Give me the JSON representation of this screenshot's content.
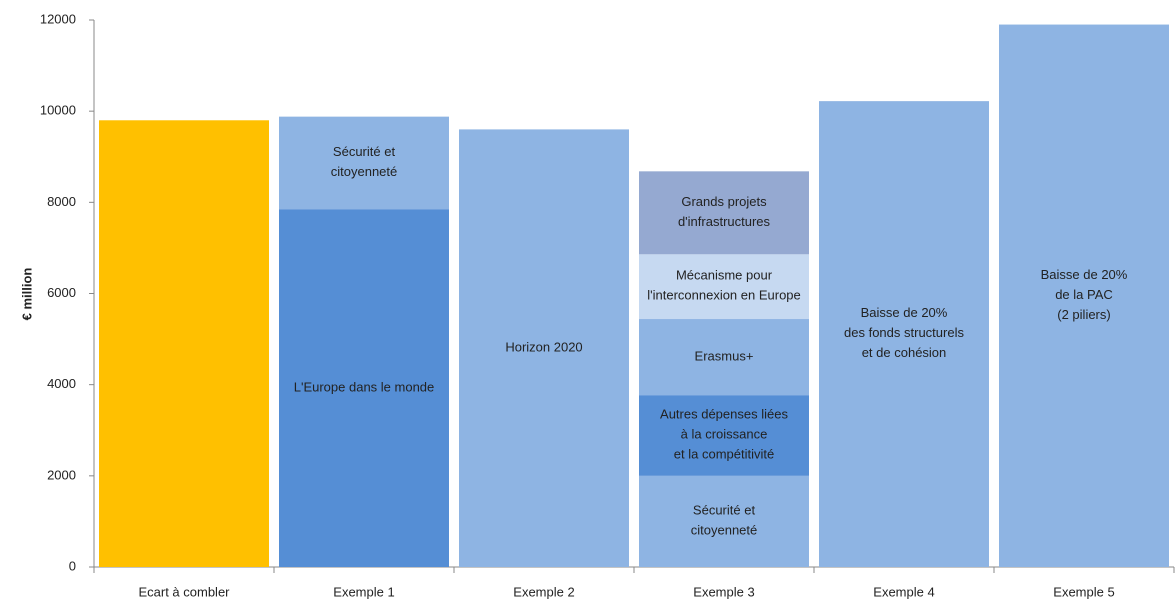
{
  "chart_data": {
    "type": "bar",
    "stacked": true,
    "y_label": "€ million",
    "categories": [
      "Ecart à combler",
      "Exemple 1",
      "Exemple 2",
      "Exemple 3",
      "Exemple 4",
      "Exemple 5"
    ],
    "series": [
      {
        "color": "#FFC000",
        "values": [
          9800,
          null,
          null,
          null,
          null,
          null
        ]
      },
      {
        "name": "L'Europe dans le monde",
        "color": "#558ED5",
        "values": [
          null,
          7850,
          null,
          null,
          null,
          null
        ]
      },
      {
        "name": "Sécurité et\ncitoyenneté",
        "color": "#8EB4E3",
        "values": [
          null,
          2030,
          null,
          2000,
          null,
          null
        ]
      },
      {
        "name": "Horizon 2020",
        "color": "#8EB4E3",
        "values": [
          null,
          null,
          9600,
          null,
          null,
          null
        ]
      },
      {
        "name": "Autres dépenses liées\nà la croissance\net la compétitivité",
        "color": "#558ED5",
        "values": [
          null,
          null,
          null,
          1770,
          null,
          null
        ]
      },
      {
        "name": "Erasmus+",
        "color": "#8EB4E3",
        "values": [
          null,
          null,
          null,
          1670,
          null,
          null
        ]
      },
      {
        "name": "Mécanisme pour\nl'interconnexion en Europe",
        "color": "#C6D9F1",
        "values": [
          null,
          null,
          null,
          1420,
          null,
          null
        ]
      },
      {
        "name": "Grands projets\nd'infrastructures",
        "color": "#95A9D1",
        "values": [
          null,
          null,
          null,
          1820,
          null,
          null
        ]
      },
      {
        "name": "Baisse de 20%\ndes fonds structurels\net de cohésion",
        "color": "#8EB4E3",
        "values": [
          null,
          null,
          null,
          null,
          10220,
          null
        ]
      },
      {
        "name": "Baisse de 20%\nde la PAC\n(2 piliers)",
        "color": "#8EB4E3",
        "values": [
          null,
          null,
          null,
          null,
          null,
          11900
        ]
      }
    ],
    "ylim": [
      0,
      12000
    ],
    "yticks": [
      0,
      2000,
      4000,
      6000,
      8000,
      10000,
      12000
    ]
  }
}
